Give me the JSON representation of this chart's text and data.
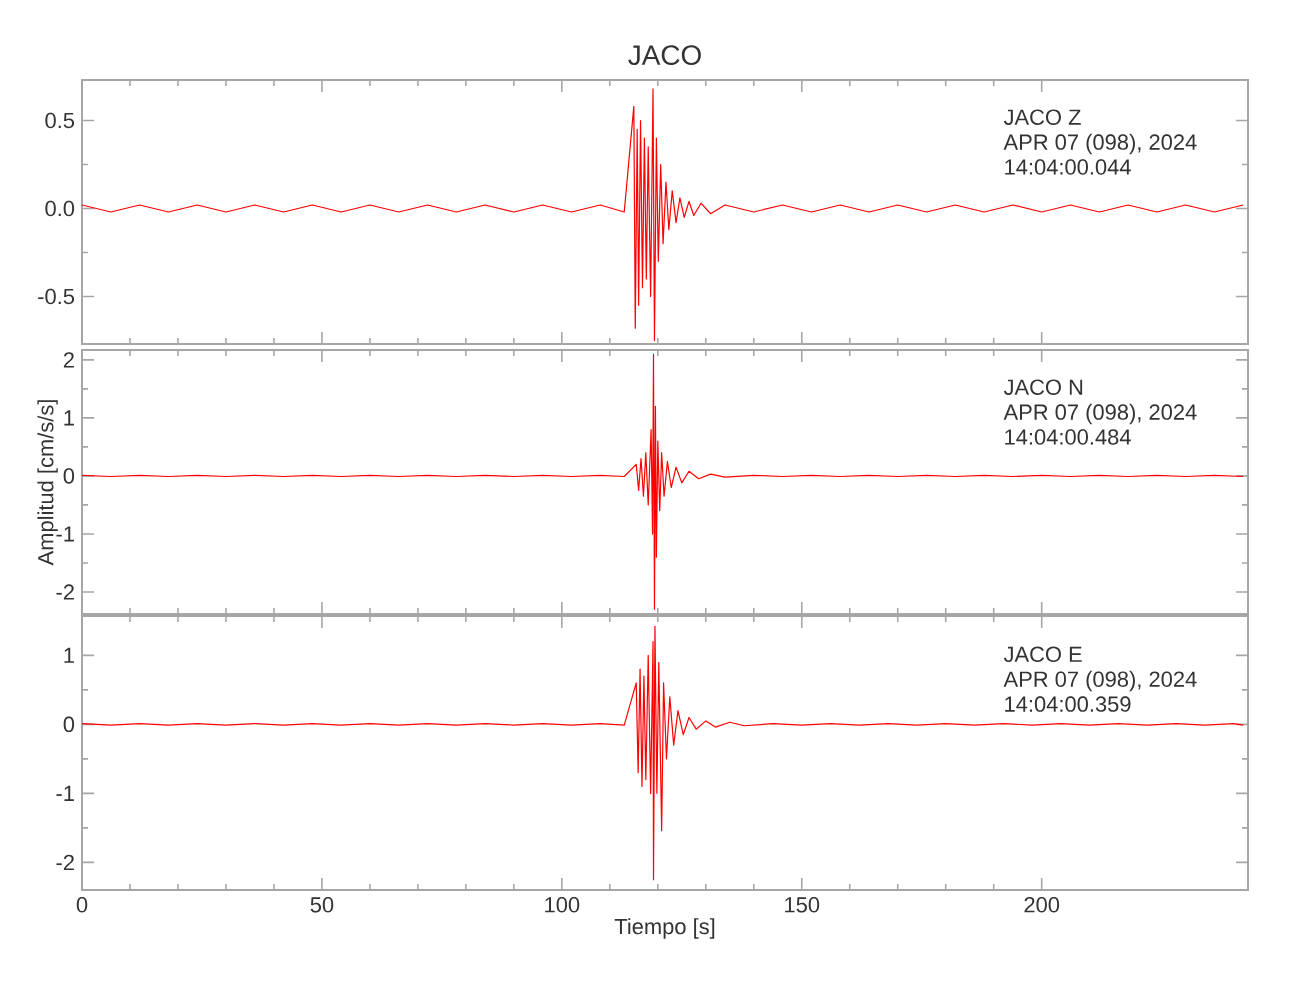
{
  "chart_data": [
    {
      "type": "line",
      "title": "JACO",
      "color": "#ff0000",
      "xlim": [
        0,
        243
      ],
      "ylim": [
        -0.77,
        0.73
      ],
      "xticks": [
        0,
        50,
        100,
        150,
        200
      ],
      "yticks": [
        {
          "value": -0.5,
          "label": "-0.5"
        },
        {
          "value": 0,
          "label": "0.0"
        },
        {
          "value": 0.5,
          "label": "0.5"
        }
      ],
      "tick_labels": "y",
      "annotations": [
        "JACO Z",
        "APR 07 (098), 2024",
        "14:04:00.044"
      ],
      "x": [
        0,
        6,
        12,
        18,
        24,
        30,
        36,
        42,
        48,
        54,
        60,
        66,
        72,
        78,
        84,
        90,
        96,
        102,
        108,
        113,
        115,
        115.3,
        115.7,
        116,
        116.4,
        116.8,
        117.2,
        117.6,
        118,
        118.5,
        119,
        119.3,
        119.7,
        120.1,
        120.6,
        121.1,
        121.7,
        122.3,
        123,
        123.8,
        124.6,
        125.5,
        126.5,
        127.5,
        129,
        131,
        134,
        140,
        146,
        152,
        158,
        164,
        170,
        176,
        182,
        188,
        194,
        200,
        206,
        212,
        218,
        224,
        230,
        236,
        242
      ],
      "values": [
        0.02,
        -0.02,
        0.02,
        -0.02,
        0.02,
        -0.02,
        0.02,
        -0.02,
        0.02,
        -0.02,
        0.02,
        -0.02,
        0.02,
        -0.02,
        0.02,
        -0.02,
        0.02,
        -0.02,
        0.02,
        -0.02,
        0.58,
        -0.68,
        0.45,
        -0.55,
        0.5,
        -0.45,
        0.4,
        -0.4,
        0.35,
        -0.5,
        0.68,
        -0.75,
        0.4,
        -0.3,
        0.25,
        -0.2,
        0.15,
        -0.12,
        0.1,
        -0.08,
        0.06,
        -0.05,
        0.04,
        -0.04,
        0.03,
        -0.03,
        0.02,
        -0.02,
        0.02,
        -0.02,
        0.02,
        -0.02,
        0.02,
        -0.02,
        0.02,
        -0.02,
        0.02,
        -0.02,
        0.02,
        -0.02,
        0.02,
        -0.02,
        0.02,
        -0.02,
        0.02
      ]
    },
    {
      "type": "line",
      "ylabel": "Amplitud [cm/s/s]",
      "color": "#ff0000",
      "xlim": [
        0,
        243
      ],
      "ylim": [
        -2.38,
        2.17
      ],
      "xticks": [
        0,
        50,
        100,
        150,
        200
      ],
      "yticks": [
        -2,
        -1,
        0,
        1,
        2
      ],
      "tick_labels": "y",
      "annotations": [
        "JACO N",
        "APR 07 (098), 2024",
        "14:04:00.484"
      ],
      "x": [
        0,
        6,
        12,
        18,
        24,
        30,
        36,
        42,
        48,
        54,
        60,
        66,
        72,
        78,
        84,
        90,
        96,
        102,
        108,
        113,
        115.5,
        116,
        116.5,
        117,
        117.5,
        118,
        118.6,
        118.9,
        119.1,
        119.3,
        119.5,
        119.7,
        120,
        120.4,
        120.8,
        121.3,
        122,
        122.8,
        123.8,
        125,
        126.5,
        128.5,
        131,
        134,
        140,
        146,
        152,
        158,
        164,
        170,
        176,
        182,
        188,
        194,
        200,
        206,
        212,
        218,
        224,
        230,
        236,
        242
      ],
      "values": [
        0.01,
        -0.01,
        0.01,
        -0.01,
        0.01,
        -0.01,
        0.01,
        -0.01,
        0.01,
        -0.01,
        0.01,
        -0.01,
        0.01,
        -0.01,
        0.01,
        -0.01,
        0.01,
        -0.01,
        0.01,
        -0.01,
        0.2,
        -0.25,
        0.3,
        -0.35,
        0.4,
        -0.5,
        0.8,
        -1.0,
        2.1,
        -2.3,
        1.2,
        -1.4,
        0.6,
        -0.6,
        0.4,
        -0.35,
        0.25,
        -0.2,
        0.15,
        -0.12,
        0.08,
        -0.05,
        0.03,
        -0.02,
        0.01,
        -0.01,
        0.01,
        -0.01,
        0.01,
        -0.01,
        0.01,
        -0.01,
        0.01,
        -0.01,
        0.01,
        -0.01,
        0.01,
        -0.01,
        0.01,
        -0.01,
        0.01,
        -0.01
      ]
    },
    {
      "type": "line",
      "xlabel": "Tiempo [s]",
      "color": "#ff0000",
      "xlim": [
        0,
        243
      ],
      "ylim": [
        -2.4,
        1.57
      ],
      "xticks": [
        0,
        50,
        100,
        150,
        200
      ],
      "yticks": [
        -2,
        -1,
        0,
        1
      ],
      "annotations": [
        "JACO E",
        "APR 07 (098), 2024",
        "14:04:00.359"
      ],
      "x": [
        0,
        6,
        12,
        18,
        24,
        30,
        36,
        42,
        48,
        54,
        60,
        66,
        72,
        78,
        84,
        90,
        96,
        102,
        108,
        113,
        115.5,
        115.9,
        116.3,
        116.7,
        117.1,
        117.5,
        118,
        118.5,
        119,
        119.1,
        119.4,
        119.8,
        120.2,
        120.8,
        121.2,
        121.8,
        122.5,
        123.3,
        124.2,
        125.3,
        126.5,
        128,
        130,
        132,
        135,
        138,
        144,
        150,
        156,
        162,
        168,
        174,
        180,
        186,
        192,
        198,
        204,
        210,
        216,
        222,
        228,
        234,
        240,
        242
      ],
      "values": [
        0.01,
        -0.01,
        0.01,
        -0.01,
        0.01,
        -0.01,
        0.01,
        -0.01,
        0.01,
        -0.01,
        0.01,
        -0.01,
        0.01,
        -0.01,
        0.01,
        -0.01,
        0.01,
        -0.01,
        0.01,
        -0.01,
        0.6,
        -0.7,
        0.8,
        -0.9,
        0.7,
        -0.8,
        1.0,
        -1.0,
        1.2,
        -2.25,
        1.42,
        -1.0,
        0.9,
        -1.54,
        0.6,
        -0.5,
        0.4,
        -0.3,
        0.2,
        -0.15,
        0.1,
        -0.07,
        0.05,
        -0.04,
        0.03,
        -0.02,
        0.01,
        -0.01,
        0.01,
        -0.01,
        0.01,
        -0.01,
        0.01,
        -0.01,
        0.01,
        -0.01,
        0.01,
        -0.01,
        0.01,
        -0.01,
        0.01,
        -0.01,
        0.01,
        -0.01
      ]
    }
  ]
}
